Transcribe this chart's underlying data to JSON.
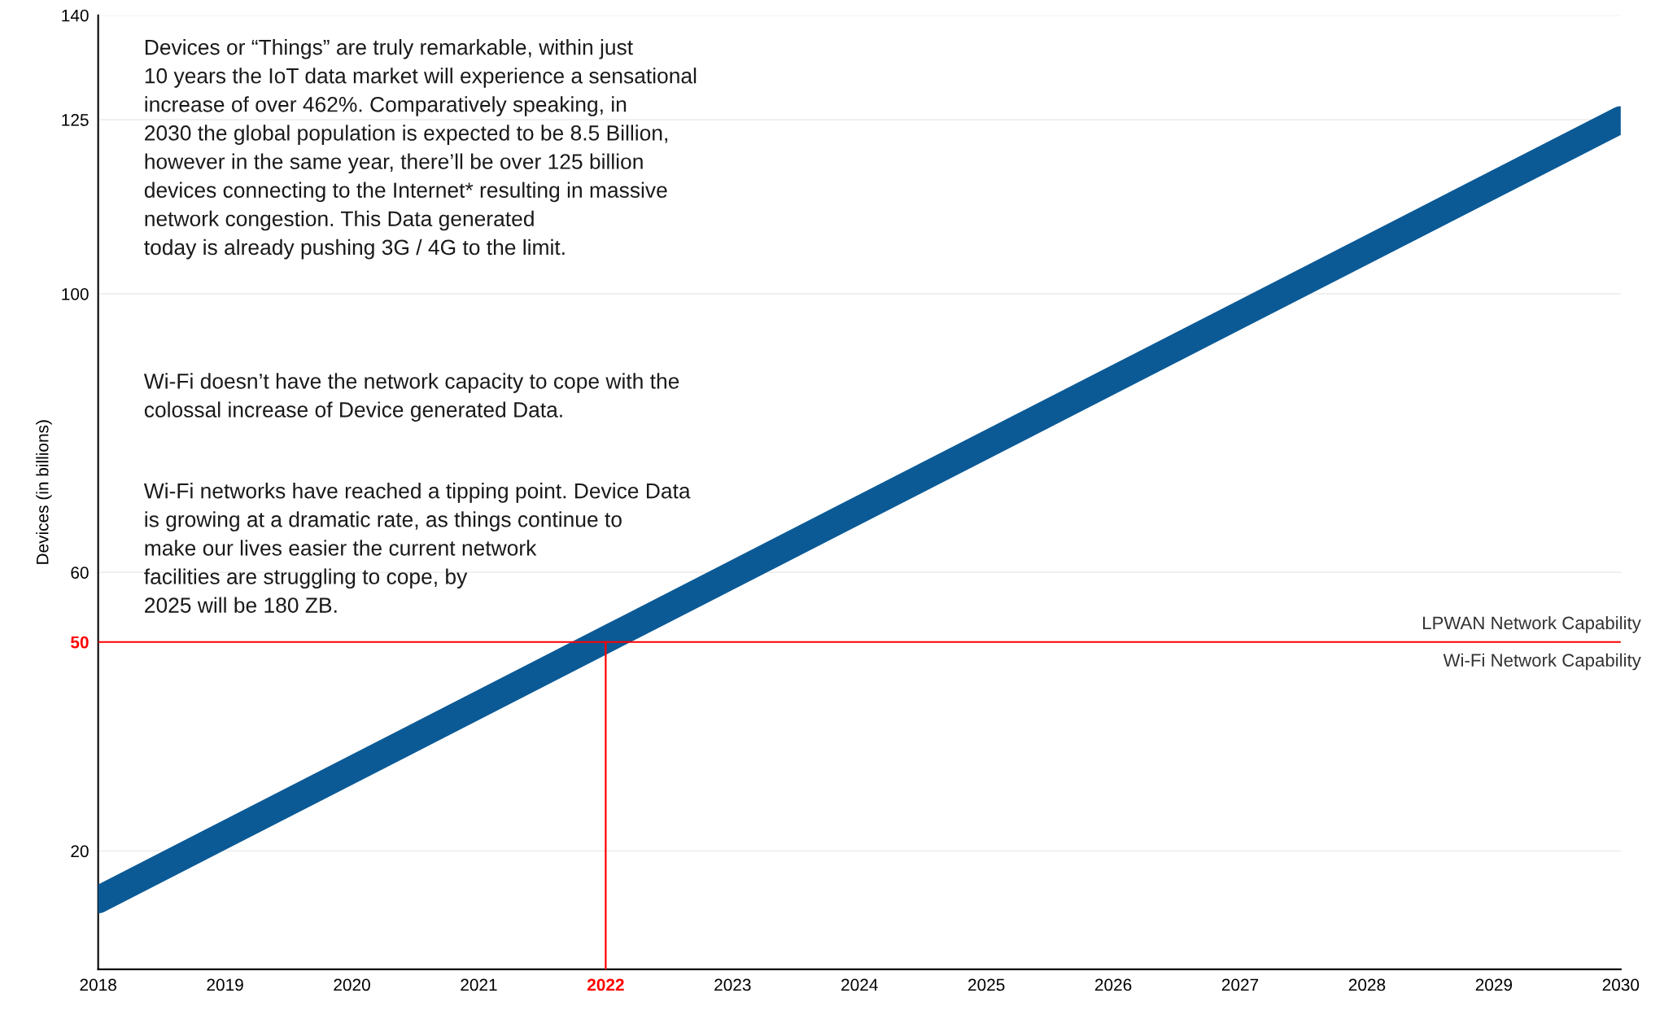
{
  "chart_data": {
    "type": "line",
    "ylabel": "Devices (in billions)",
    "x": [
      2018,
      2030
    ],
    "series": [
      {
        "color": "#0b5a96",
        "values": [
          13,
          125
        ]
      }
    ],
    "xlim": [
      2018,
      2030
    ],
    "xticks": [
      2018,
      2019,
      2020,
      2021,
      2022,
      2023,
      2024,
      2025,
      2026,
      2027,
      2028,
      2029,
      2030
    ],
    "ylim": [
      3,
      140
    ],
    "yticks": [
      20,
      50,
      60,
      100,
      125,
      140
    ],
    "grid": "y",
    "line_style": "solid",
    "marker": "none",
    "ref_lines": [
      {
        "axis": "y",
        "value": 50,
        "color": "#ff0000"
      },
      {
        "axis": "x",
        "value": 2022,
        "color": "#ff0000"
      }
    ],
    "annotations": [
      "Devices or “Things” are truly remarkable, within just\n10 years the IoT data market will experience a sensational\nincrease of over 462%. Comparatively speaking, in\n2030 the global population is expected to be 8.5 Billion,\nhowever in the same year, there’ll be over 125 billion\ndevices connecting to the Internet* resulting in massive\nnetwork congestion. This Data generated\ntoday is already pushing 3G / 4G to the limit.",
      "Wi-Fi doesn’t have the network capacity to cope with the\ncolossal increase of Device generated Data.",
      "Wi-Fi networks have reached a tipping point. Device Data\nis growing at a dramatic rate, as things continue to\nmake our lives easier the current network\nfacilities are struggling to cope, by\n2025 will be 180 ZB.",
      {
        "text": "LPWAN Network Capability",
        "x": 2030,
        "y": 50
      },
      {
        "text": "Wi-Fi Network Capability",
        "x": 2030,
        "y": 50
      }
    ]
  }
}
